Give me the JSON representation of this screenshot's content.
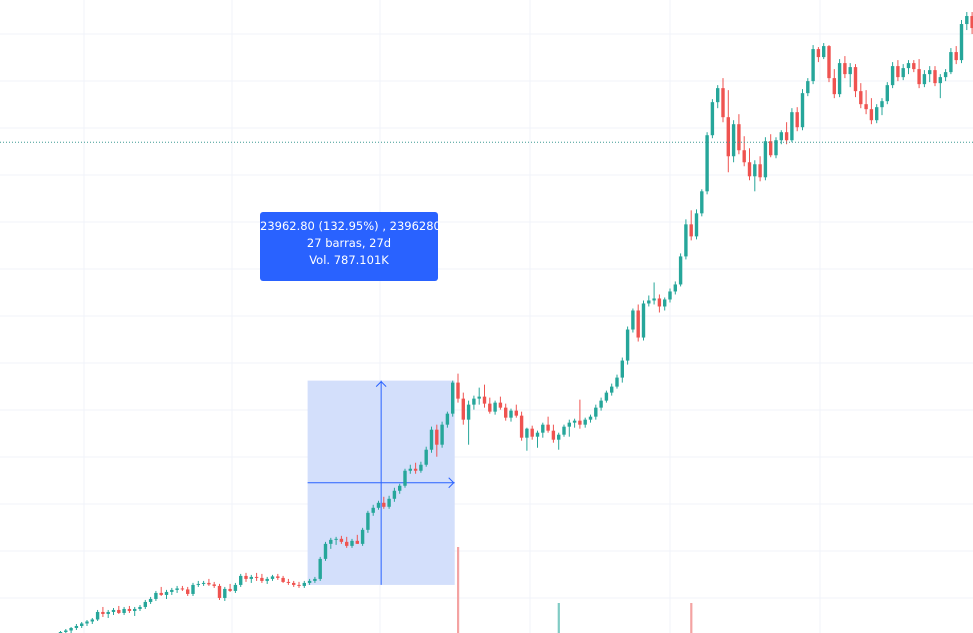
{
  "chart_data": {
    "type": "candlestick",
    "colors": {
      "up": "#26a69a",
      "down": "#ef5350",
      "volume_up": "#80cbc4",
      "volume_down": "#f4a3a2",
      "grid": "#f0f3fa",
      "measure_fill": "#d1ddfb",
      "measure_line": "#2962ff",
      "price_line": "#3d9a93"
    },
    "grid": true,
    "price_line": 24000,
    "y_range": [
      19100,
      25420
    ],
    "measure": {
      "bars": 27,
      "days": 27,
      "change": 23962.8,
      "change_pct": 132.95,
      "ticks": 2396280,
      "volume": "787.101K",
      "start_index": 52,
      "end_index": 79
    },
    "candles": [
      [
        19000,
        19040,
        18960,
        19020
      ],
      [
        19020,
        19050,
        19000,
        19035
      ],
      [
        19035,
        19060,
        19010,
        19045
      ],
      [
        19045,
        19080,
        19030,
        19070
      ],
      [
        19070,
        19100,
        19050,
        19085
      ],
      [
        19085,
        19120,
        19070,
        19110
      ],
      [
        19110,
        19140,
        19090,
        19125
      ],
      [
        19125,
        19160,
        19100,
        19150
      ],
      [
        19150,
        19190,
        19130,
        19170
      ],
      [
        19170,
        19210,
        19150,
        19195
      ],
      [
        19195,
        19230,
        19170,
        19215
      ],
      [
        19215,
        19250,
        19190,
        19235
      ],
      [
        19235,
        19330,
        19220,
        19310
      ],
      [
        19310,
        19360,
        19260,
        19290
      ],
      [
        19290,
        19330,
        19250,
        19310
      ],
      [
        19310,
        19350,
        19280,
        19330
      ],
      [
        19330,
        19370,
        19290,
        19300
      ],
      [
        19300,
        19360,
        19280,
        19340
      ],
      [
        19340,
        19370,
        19300,
        19320
      ],
      [
        19320,
        19360,
        19270,
        19340
      ],
      [
        19340,
        19380,
        19320,
        19360
      ],
      [
        19360,
        19430,
        19340,
        19410
      ],
      [
        19410,
        19460,
        19390,
        19440
      ],
      [
        19440,
        19520,
        19420,
        19500
      ],
      [
        19500,
        19560,
        19470,
        19480
      ],
      [
        19480,
        19530,
        19440,
        19510
      ],
      [
        19510,
        19550,
        19480,
        19530
      ],
      [
        19530,
        19570,
        19500,
        19545
      ],
      [
        19545,
        19570,
        19520,
        19535
      ],
      [
        19535,
        19560,
        19470,
        19490
      ],
      [
        19490,
        19600,
        19470,
        19580
      ],
      [
        19580,
        19620,
        19560,
        19590
      ],
      [
        19590,
        19620,
        19570,
        19600
      ],
      [
        19600,
        19640,
        19570,
        19585
      ],
      [
        19585,
        19610,
        19550,
        19570
      ],
      [
        19570,
        19590,
        19430,
        19450
      ],
      [
        19450,
        19560,
        19420,
        19540
      ],
      [
        19540,
        19590,
        19510,
        19520
      ],
      [
        19520,
        19600,
        19500,
        19580
      ],
      [
        19580,
        19690,
        19560,
        19670
      ],
      [
        19670,
        19700,
        19610,
        19640
      ],
      [
        19640,
        19680,
        19600,
        19660
      ],
      [
        19660,
        19700,
        19620,
        19650
      ],
      [
        19650,
        19690,
        19600,
        19620
      ],
      [
        19620,
        19660,
        19590,
        19640
      ],
      [
        19640,
        19680,
        19620,
        19665
      ],
      [
        19665,
        19690,
        19630,
        19650
      ],
      [
        19650,
        19670,
        19600,
        19610
      ],
      [
        19610,
        19640,
        19580,
        19600
      ],
      [
        19600,
        19620,
        19560,
        19580
      ],
      [
        19580,
        19610,
        19550,
        19570
      ],
      [
        19570,
        19620,
        19550,
        19600
      ],
      [
        19600,
        19640,
        19580,
        19620
      ],
      [
        19620,
        19660,
        19600,
        19640
      ],
      [
        19640,
        19860,
        19620,
        19840
      ],
      [
        19840,
        20010,
        19820,
        19990
      ],
      [
        19990,
        20050,
        19940,
        20030
      ],
      [
        20030,
        20060,
        19980,
        20040
      ],
      [
        20040,
        20070,
        19990,
        20010
      ],
      [
        20010,
        20060,
        19950,
        19970
      ],
      [
        19970,
        20040,
        19950,
        20020
      ],
      [
        20020,
        20080,
        19990,
        19990
      ],
      [
        19990,
        20150,
        19970,
        20130
      ],
      [
        20130,
        20320,
        20100,
        20300
      ],
      [
        20300,
        20380,
        20270,
        20350
      ],
      [
        20350,
        20420,
        20330,
        20400
      ],
      [
        20400,
        20460,
        20340,
        20360
      ],
      [
        20360,
        20470,
        20340,
        20440
      ],
      [
        20440,
        20550,
        20410,
        20520
      ],
      [
        20520,
        20590,
        20490,
        20570
      ],
      [
        20570,
        20740,
        20550,
        20720
      ],
      [
        20720,
        20780,
        20690,
        20740
      ],
      [
        20740,
        20800,
        20690,
        20720
      ],
      [
        20720,
        20810,
        20700,
        20780
      ],
      [
        20780,
        20960,
        20760,
        20930
      ],
      [
        20930,
        21160,
        20900,
        21130
      ],
      [
        21130,
        21180,
        20860,
        20980
      ],
      [
        20980,
        21210,
        20950,
        21180
      ],
      [
        21180,
        21310,
        21150,
        21290
      ],
      [
        21290,
        21620,
        21260,
        21600
      ],
      [
        21600,
        21690,
        21400,
        21440
      ],
      [
        21440,
        21500,
        21180,
        21230
      ],
      [
        21230,
        21420,
        20980,
        21380
      ],
      [
        21380,
        21470,
        21330,
        21440
      ],
      [
        21440,
        21550,
        21380,
        21460
      ],
      [
        21460,
        21580,
        21350,
        21390
      ],
      [
        21390,
        21450,
        21290,
        21310
      ],
      [
        21310,
        21420,
        21280,
        21400
      ],
      [
        21400,
        21460,
        21330,
        21350
      ],
      [
        21350,
        21390,
        21220,
        21250
      ],
      [
        21250,
        21340,
        21210,
        21320
      ],
      [
        21320,
        21380,
        21250,
        21270
      ],
      [
        21270,
        21310,
        21020,
        21050
      ],
      [
        21050,
        21150,
        20920,
        21140
      ],
      [
        21140,
        21170,
        21030,
        21060
      ],
      [
        21060,
        21120,
        20950,
        21100
      ],
      [
        21100,
        21200,
        21050,
        21180
      ],
      [
        21180,
        21260,
        21100,
        21120
      ],
      [
        21120,
        21180,
        21000,
        21030
      ],
      [
        21030,
        21100,
        20930,
        21080
      ],
      [
        21080,
        21180,
        21060,
        21160
      ],
      [
        21160,
        21230,
        21060,
        21200
      ],
      [
        21200,
        21240,
        21150,
        21220
      ],
      [
        21220,
        21430,
        21140,
        21180
      ],
      [
        21180,
        21250,
        21150,
        21230
      ],
      [
        21230,
        21280,
        21200,
        21260
      ],
      [
        21260,
        21380,
        21230,
        21350
      ],
      [
        21350,
        21450,
        21320,
        21420
      ],
      [
        21420,
        21520,
        21400,
        21500
      ],
      [
        21500,
        21590,
        21470,
        21560
      ],
      [
        21560,
        21680,
        21540,
        21650
      ],
      [
        21650,
        21850,
        21600,
        21820
      ],
      [
        21820,
        22160,
        21780,
        22130
      ],
      [
        22130,
        22340,
        22100,
        22320
      ],
      [
        22320,
        22380,
        22010,
        22050
      ],
      [
        22050,
        22420,
        22020,
        22390
      ],
      [
        22390,
        22470,
        22360,
        22420
      ],
      [
        22420,
        22600,
        22380,
        22440
      ],
      [
        22440,
        22480,
        22300,
        22360
      ],
      [
        22360,
        22450,
        22320,
        22430
      ],
      [
        22430,
        22540,
        22400,
        22510
      ],
      [
        22510,
        22610,
        22480,
        22580
      ],
      [
        22580,
        22890,
        22560,
        22860
      ],
      [
        22860,
        23230,
        22830,
        23180
      ],
      [
        23180,
        23320,
        23020,
        23060
      ],
      [
        23060,
        23330,
        23030,
        23290
      ],
      [
        23290,
        23530,
        23260,
        23510
      ],
      [
        23510,
        24100,
        23480,
        24070
      ],
      [
        24070,
        24430,
        24040,
        24400
      ],
      [
        24400,
        24570,
        24340,
        24540
      ],
      [
        24540,
        24640,
        24200,
        24250
      ],
      [
        24250,
        24520,
        23700,
        23860
      ],
      [
        23860,
        24220,
        23800,
        24180
      ],
      [
        24180,
        24280,
        23880,
        23920
      ],
      [
        23920,
        24060,
        23760,
        23800
      ],
      [
        23800,
        23940,
        23620,
        23660
      ],
      [
        23660,
        23820,
        23510,
        23780
      ],
      [
        23780,
        23860,
        23610,
        23650
      ],
      [
        23650,
        24050,
        23620,
        24010
      ],
      [
        24010,
        24080,
        23850,
        23870
      ],
      [
        23870,
        24050,
        23840,
        24020
      ],
      [
        24020,
        24120,
        23980,
        24100
      ],
      [
        24100,
        24200,
        23980,
        24020
      ],
      [
        24020,
        24340,
        24000,
        24300
      ],
      [
        24300,
        24350,
        24110,
        24150
      ],
      [
        24150,
        24530,
        24120,
        24490
      ],
      [
        24490,
        24640,
        24460,
        24610
      ],
      [
        24610,
        24970,
        24580,
        24930
      ],
      [
        24930,
        24950,
        24800,
        24850
      ],
      [
        24850,
        24990,
        24830,
        24960
      ],
      [
        24960,
        24970,
        24600,
        24640
      ],
      [
        24640,
        24730,
        24440,
        24480
      ],
      [
        24480,
        24830,
        24450,
        24790
      ],
      [
        24790,
        24860,
        24640,
        24680
      ],
      [
        24680,
        24790,
        24550,
        24750
      ],
      [
        24750,
        24780,
        24450,
        24510
      ],
      [
        24510,
        24590,
        24340,
        24380
      ],
      [
        24380,
        24520,
        24280,
        24330
      ],
      [
        24330,
        24440,
        24180,
        24220
      ],
      [
        24220,
        24380,
        24190,
        24350
      ],
      [
        24350,
        24440,
        24270,
        24410
      ],
      [
        24410,
        24600,
        24380,
        24570
      ],
      [
        24570,
        24800,
        24540,
        24760
      ],
      [
        24760,
        24820,
        24610,
        24650
      ],
      [
        24650,
        24780,
        24620,
        24740
      ],
      [
        24740,
        24820,
        24680,
        24790
      ],
      [
        24790,
        24820,
        24700,
        24730
      ],
      [
        24730,
        24830,
        24540,
        24580
      ],
      [
        24580,
        24720,
        24550,
        24680
      ],
      [
        24680,
        24760,
        24600,
        24720
      ],
      [
        24720,
        24760,
        24560,
        24590
      ],
      [
        24590,
        24680,
        24440,
        24650
      ],
      [
        24650,
        24730,
        24610,
        24700
      ],
      [
        24700,
        24940,
        24680,
        24900
      ],
      [
        24900,
        24960,
        24780,
        24820
      ],
      [
        24820,
        25220,
        24790,
        25180
      ],
      [
        25180,
        25300,
        25120,
        25260
      ],
      [
        25260,
        25300,
        25080,
        25140
      ],
      [
        25140,
        25230,
        24840,
        24880
      ],
      [
        24880,
        24970,
        24700,
        24950
      ],
      [
        24950,
        24970,
        24400,
        24470
      ],
      [
        24470,
        24550,
        24000,
        24150
      ],
      [
        24150,
        24400,
        24100,
        24380
      ],
      [
        24380,
        24490,
        23860,
        24100
      ],
      [
        24100,
        24250,
        23890,
        23960
      ],
      [
        23960,
        24010,
        23810,
        23850
      ],
      [
        23850,
        24180,
        23820,
        24140
      ],
      [
        24140,
        24400,
        24110,
        24370
      ],
      [
        24370,
        24470,
        24270,
        24330
      ],
      [
        24330,
        24460,
        24200,
        24280
      ],
      [
        24280,
        24590,
        24250,
        24560
      ],
      [
        24560,
        24610,
        24410,
        24470
      ]
    ],
    "volume": [
      {
        "index": 80,
        "level": 0.86,
        "dir": "down"
      },
      {
        "index": 99,
        "level": 0.3,
        "dir": "up"
      },
      {
        "index": 124,
        "level": 0.3,
        "dir": "down"
      }
    ]
  },
  "tooltip": {
    "line1": "23962.80 (132.95%) , 2396280",
    "line2": "27 barras, 27d",
    "line3": "Vol. 787.101K"
  }
}
